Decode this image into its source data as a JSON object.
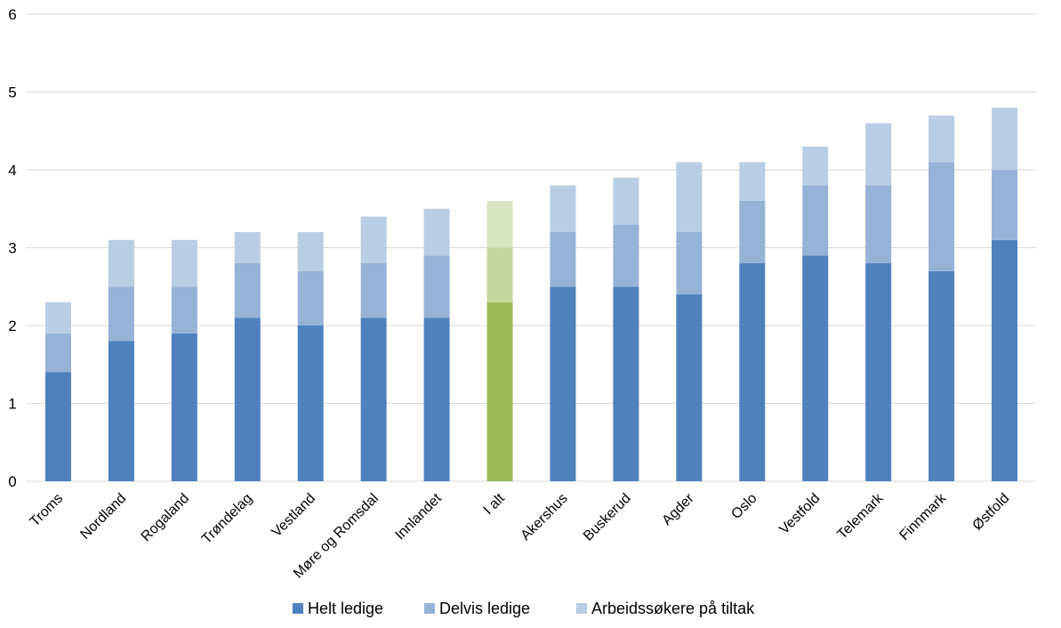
{
  "chart_data": {
    "type": "bar",
    "stacked": true,
    "title": "",
    "xlabel": "",
    "ylabel": "",
    "ylim": [
      0,
      6
    ],
    "yticks": [
      0,
      1,
      2,
      3,
      4,
      5,
      6
    ],
    "grid": true,
    "legend_position": "bottom",
    "categories": [
      "Troms",
      "Nordland",
      "Rogaland",
      "Trøndelag",
      "Vestland",
      "Møre og Romsdal",
      "Innlandet",
      "I alt",
      "Akershus",
      "Buskerud",
      "Agder",
      "Oslo",
      "Vestfold",
      "Telemark",
      "Finnmark",
      "Østfold"
    ],
    "highlight_category": "I alt",
    "series": [
      {
        "name": "Helt ledige",
        "color": "#4f81bd",
        "highlight_color": "#9bbb59",
        "values": [
          1.4,
          1.8,
          1.9,
          2.1,
          2.0,
          2.1,
          2.1,
          2.3,
          2.5,
          2.5,
          2.4,
          2.8,
          2.9,
          2.8,
          2.7,
          3.1
        ]
      },
      {
        "name": "Delvis ledige",
        "color": "#95b3d7",
        "highlight_color": "#c3d69b",
        "values": [
          0.5,
          0.7,
          0.6,
          0.7,
          0.7,
          0.7,
          0.8,
          0.7,
          0.7,
          0.8,
          0.8,
          0.8,
          0.9,
          1.0,
          1.4,
          0.9
        ]
      },
      {
        "name": "Arbeidssøkere på tiltak",
        "color": "#b9cde5",
        "highlight_color": "#d7e4bd",
        "values": [
          0.4,
          0.6,
          0.6,
          0.4,
          0.5,
          0.6,
          0.6,
          0.6,
          0.6,
          0.6,
          0.9,
          0.5,
          0.5,
          0.8,
          0.6,
          0.8
        ]
      }
    ]
  }
}
